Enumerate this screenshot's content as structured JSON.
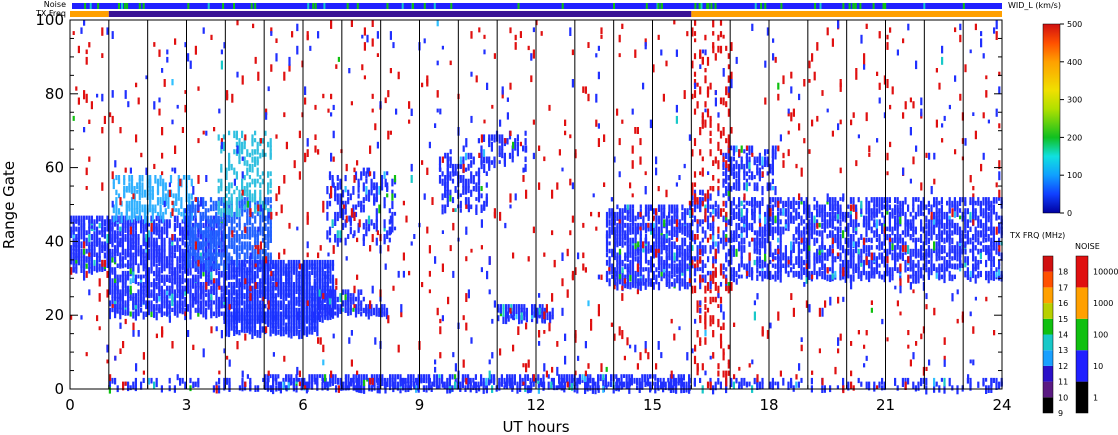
{
  "chart_data": {
    "type": "heatmap",
    "xlabel": "UT hours",
    "ylabel": "Range Gate",
    "xlim": [
      0,
      24
    ],
    "ylim": [
      0,
      100
    ],
    "x_ticks": [
      "0",
      "3",
      "6",
      "9",
      "12",
      "15",
      "18",
      "21",
      "24"
    ],
    "y_ticks": [
      "0",
      "20",
      "40",
      "60",
      "80",
      "100"
    ],
    "scan_boundaries_hours": [
      1,
      2,
      3,
      4,
      5,
      6,
      7,
      8,
      9,
      10,
      11,
      12,
      13,
      14,
      15,
      16,
      17,
      18,
      19,
      20,
      21,
      22,
      23
    ],
    "top_strips": {
      "noise_label": "Noise",
      "txfreq_label": "TX Freq",
      "txfreq_segments": [
        {
          "start": 0,
          "end": 1,
          "color": "#ffa000"
        },
        {
          "start": 1,
          "end": 16,
          "color": "#3a1496"
        },
        {
          "start": 16,
          "end": 24,
          "color": "#ffa000"
        }
      ]
    },
    "main_colorbar": {
      "title": "WID_L (km/s)",
      "ticks": [
        "0",
        "100",
        "200",
        "300",
        "400",
        "500"
      ],
      "range": [
        0,
        500
      ]
    },
    "freq_colorbar": {
      "title": "TX FRQ (MHz)",
      "ticks": [
        "9",
        "10",
        "11",
        "12",
        "13",
        "14",
        "15",
        "16",
        "17",
        "18"
      ],
      "colors": [
        "#000000",
        "#5a1a82",
        "#2a10c8",
        "#1aa0ff",
        "#18c8c8",
        "#10c010",
        "#b8d000",
        "#ffa000",
        "#ff5000",
        "#d01010"
      ]
    },
    "noise_colorbar": {
      "title": "NOISE",
      "ticks": [
        "1",
        "10",
        "100",
        "1000",
        "10000"
      ],
      "colors": [
        "#000000",
        "#2020ff",
        "#10c010",
        "#ffa000",
        "#e01010"
      ]
    },
    "regions": [
      {
        "t0": 0.0,
        "t1": 1.1,
        "g0": 32,
        "g1": 47,
        "color": "#2030ff",
        "density": 0.75
      },
      {
        "t0": 1.0,
        "t1": 4.0,
        "g0": 20,
        "g1": 47,
        "color": "#2030ff",
        "density": 0.7
      },
      {
        "t0": 1.1,
        "t1": 3.2,
        "g0": 46,
        "g1": 58,
        "color": "#30b0ff",
        "density": 0.45
      },
      {
        "t0": 3.0,
        "t1": 5.2,
        "g0": 33,
        "g1": 52,
        "color": "#2060ff",
        "density": 0.55
      },
      {
        "t0": 3.8,
        "t1": 5.2,
        "g0": 48,
        "g1": 70,
        "color": "#30c0e0",
        "density": 0.3
      },
      {
        "t0": 4.0,
        "t1": 6.8,
        "g0": 19,
        "g1": 35,
        "color": "#1830ff",
        "density": 0.85
      },
      {
        "t0": 4.0,
        "t1": 6.4,
        "g0": 15,
        "g1": 21,
        "color": "#1830ff",
        "density": 0.8
      },
      {
        "t0": 6.4,
        "t1": 7.6,
        "g0": 20,
        "g1": 27,
        "color": "#2030ff",
        "density": 0.7
      },
      {
        "t0": 7.6,
        "t1": 8.2,
        "g0": 20,
        "g1": 23,
        "color": "#2030ff",
        "density": 0.8
      },
      {
        "t0": 6.6,
        "t1": 8.4,
        "g0": 40,
        "g1": 60,
        "color": "#2030ff",
        "density": 0.25
      },
      {
        "t0": 9.5,
        "t1": 10.8,
        "g0": 48,
        "g1": 64,
        "color": "#2030ff",
        "density": 0.35
      },
      {
        "t0": 10.5,
        "t1": 11.8,
        "g0": 60,
        "g1": 70,
        "color": "#2030ff",
        "density": 0.25
      },
      {
        "t0": 11.0,
        "t1": 12.2,
        "g0": 19,
        "g1": 23,
        "color": "#2030ff",
        "density": 0.8
      },
      {
        "t0": 12.0,
        "t1": 12.5,
        "g0": 19,
        "g1": 22,
        "color": "#2030ff",
        "density": 0.7
      },
      {
        "t0": 13.8,
        "t1": 16.0,
        "g0": 28,
        "g1": 50,
        "color": "#2030ff",
        "density": 0.6
      },
      {
        "t0": 16.0,
        "t1": 17.0,
        "g0": 28,
        "g1": 54,
        "color": "#2030ff",
        "density": 0.3
      },
      {
        "t0": 16.8,
        "t1": 18.2,
        "g0": 54,
        "g1": 66,
        "color": "#2030ff",
        "density": 0.45
      },
      {
        "t0": 17.0,
        "t1": 24.0,
        "g0": 30,
        "g1": 52,
        "color": "#2030ff",
        "density": 0.5
      },
      {
        "t0": 1.0,
        "t1": 24.0,
        "g0": 0,
        "g1": 3,
        "color": "#2030ff",
        "density": 0.25
      },
      {
        "t0": 5.0,
        "t1": 16.0,
        "g0": 0,
        "g1": 4,
        "color": "#2030ff",
        "density": 0.6
      },
      {
        "t0": 16.0,
        "t1": 17.0,
        "g0": 0,
        "g1": 100,
        "color": "#e01010",
        "density": 0.12
      },
      {
        "t0": 0.0,
        "t1": 24.0,
        "g0": 0,
        "g1": 100,
        "color": "#e01010",
        "density": 0.018
      },
      {
        "t0": 0.0,
        "t1": 24.0,
        "g0": 0,
        "g1": 100,
        "color": "#2030ff",
        "density": 0.012
      }
    ]
  }
}
